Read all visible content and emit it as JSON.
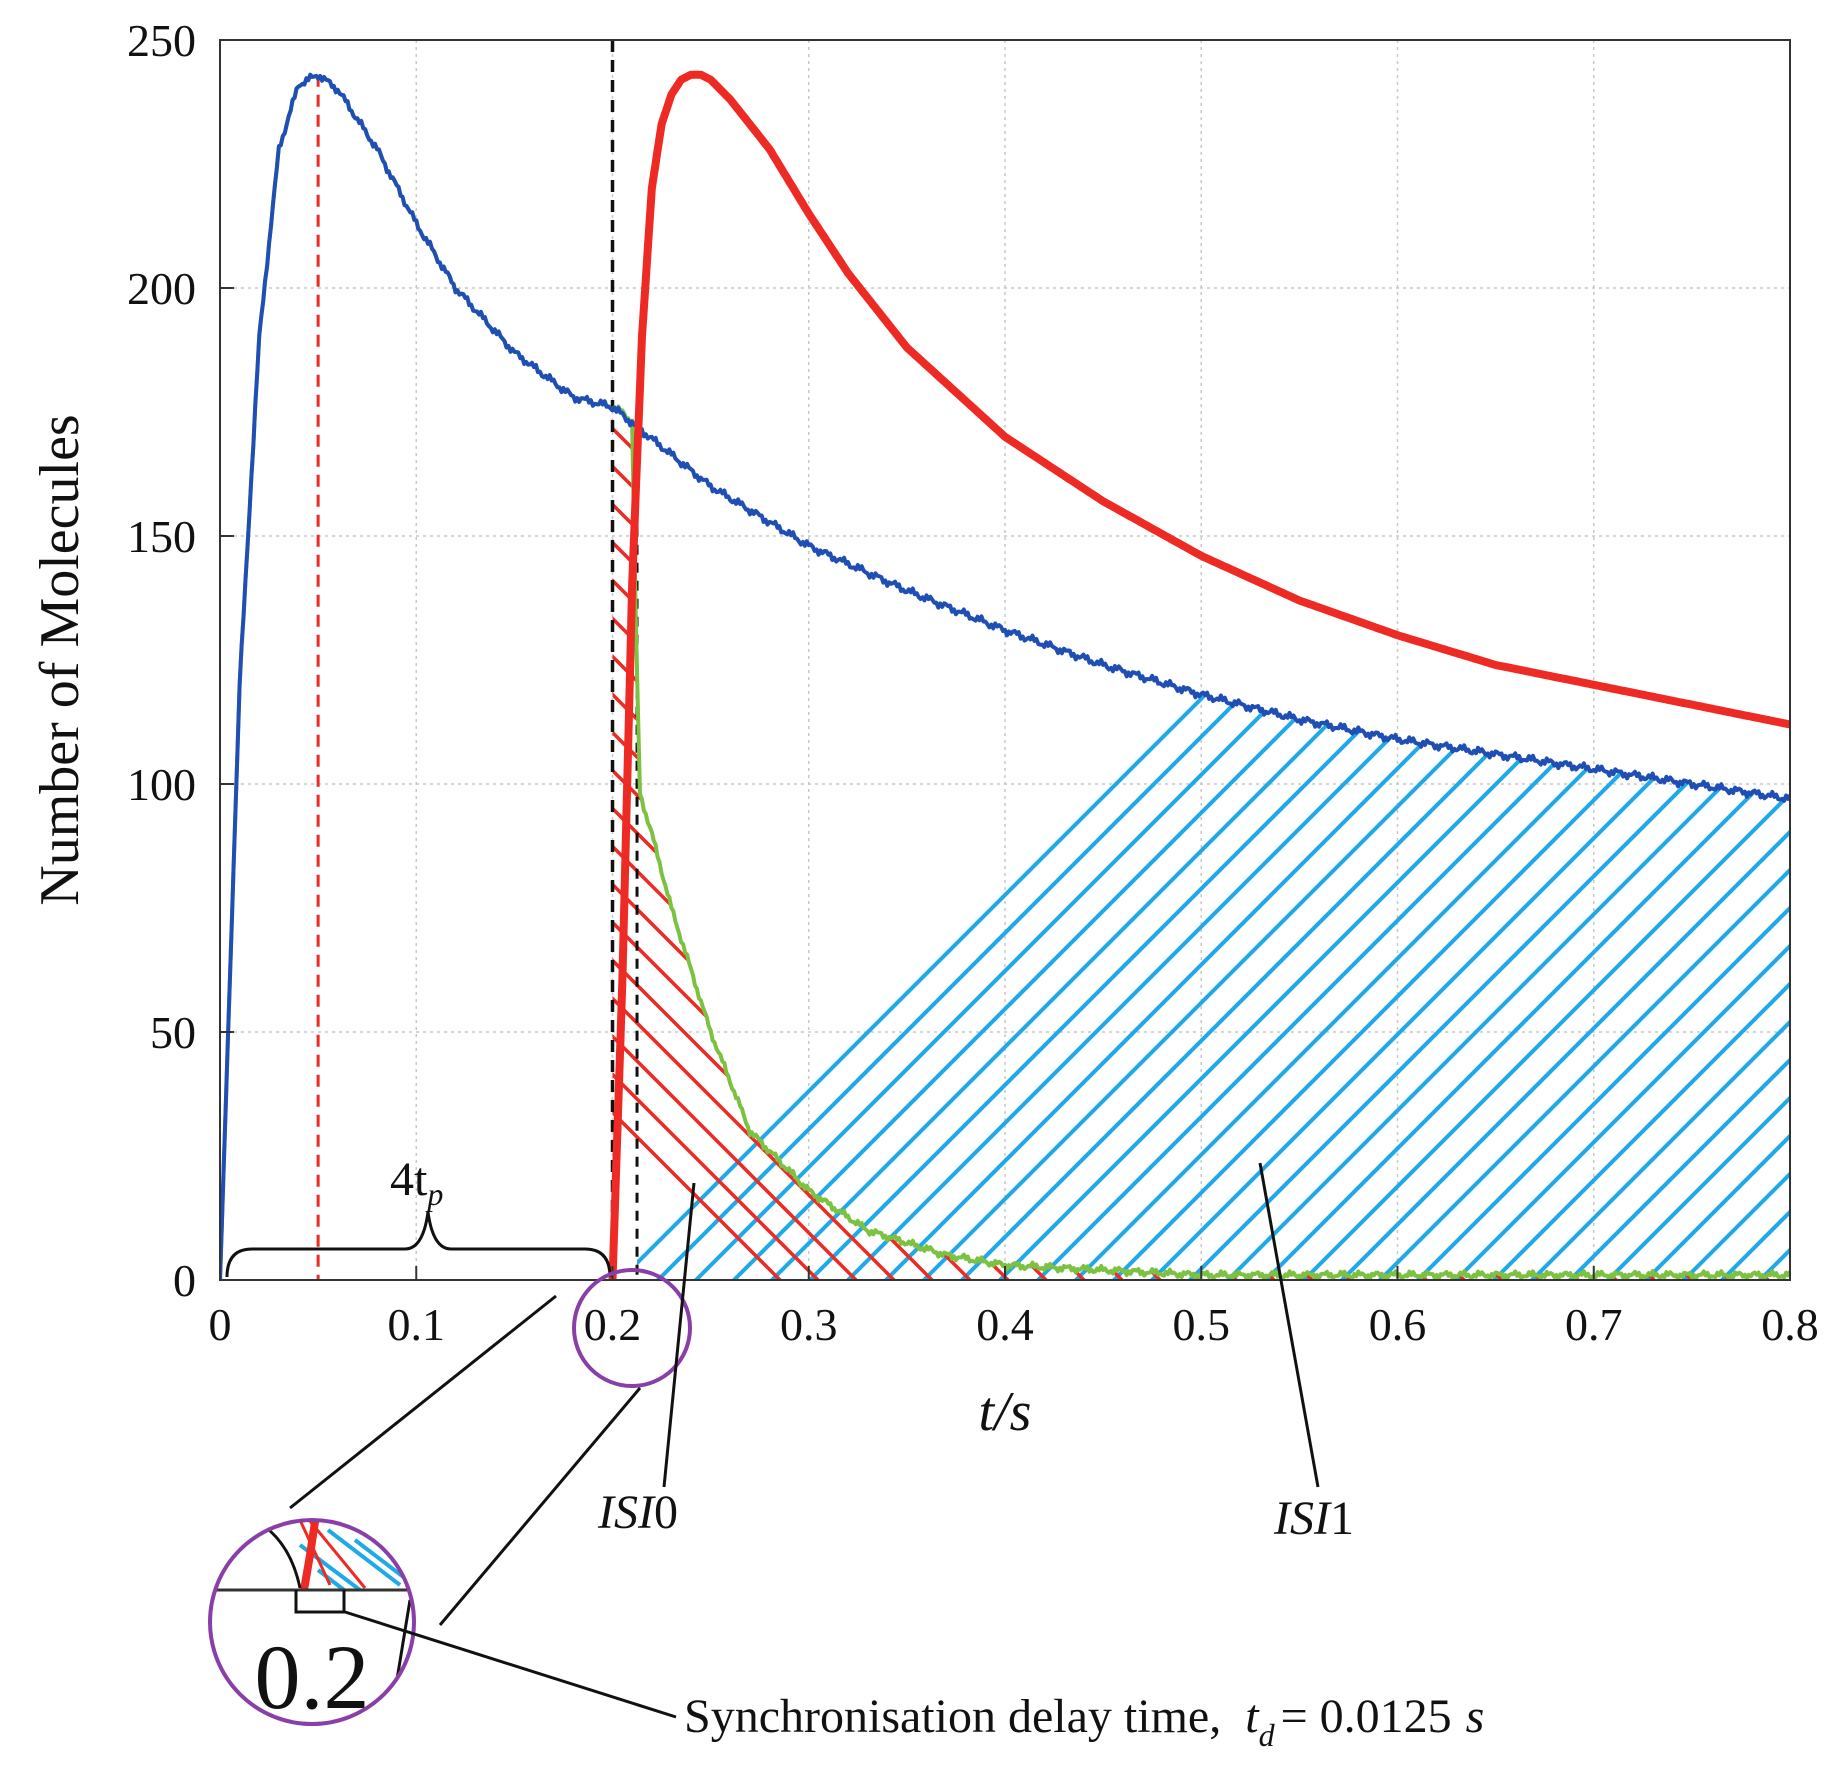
{
  "chart_data": {
    "type": "line",
    "title": "",
    "xlabel": "t/s",
    "ylabel": "Number of Molecules",
    "xlim": [
      0,
      0.8
    ],
    "ylim": [
      0,
      250
    ],
    "grid": true,
    "xticks": [
      "0",
      "0.1",
      "0.2",
      "0.3",
      "0.4",
      "0.5",
      "0.6",
      "0.7",
      "0.8"
    ],
    "yticks": [
      "0",
      "50",
      "100",
      "150",
      "200",
      "250"
    ],
    "colors": {
      "blue": "#1f4fb4",
      "red": "#ee2a24",
      "green": "#7cc142",
      "cyan": "#1fa9e6",
      "purple": "#8a3ea8",
      "black": "#111111"
    },
    "series": [
      {
        "name": "blue",
        "x": [
          0,
          0.01,
          0.02,
          0.03,
          0.04,
          0.05,
          0.06,
          0.08,
          0.1,
          0.12,
          0.15,
          0.18,
          0.2,
          0.25,
          0.3,
          0.35,
          0.4,
          0.45,
          0.5,
          0.55,
          0.6,
          0.65,
          0.7,
          0.75,
          0.8
        ],
        "values": [
          0,
          120,
          190,
          228,
          241,
          243,
          240,
          228,
          213,
          200,
          187,
          178,
          176,
          160,
          148,
          139,
          131,
          124,
          118,
          113,
          109,
          106,
          103,
          100,
          97
        ]
      },
      {
        "name": "green",
        "x": [
          0,
          0.01,
          0.02,
          0.03,
          0.04,
          0.05,
          0.06,
          0.08,
          0.1,
          0.12,
          0.15,
          0.18,
          0.2,
          0.205,
          0.21,
          0.212,
          0.214,
          0.22,
          0.23,
          0.25,
          0.27,
          0.3,
          0.33,
          0.37,
          0.4,
          0.45,
          0.5,
          0.6,
          0.7,
          0.8
        ],
        "values": [
          0,
          120,
          190,
          228,
          241,
          243,
          240,
          228,
          213,
          200,
          187,
          178,
          176,
          175,
          173,
          130,
          98,
          90,
          75,
          50,
          30,
          18,
          10,
          5,
          3,
          2,
          1,
          1,
          1,
          1
        ]
      },
      {
        "name": "red",
        "x": [
          0.2,
          0.205,
          0.21,
          0.215,
          0.22,
          0.225,
          0.23,
          0.235,
          0.24,
          0.245,
          0.25,
          0.26,
          0.28,
          0.3,
          0.32,
          0.35,
          0.4,
          0.45,
          0.5,
          0.55,
          0.6,
          0.65,
          0.7,
          0.75,
          0.8
        ],
        "values": [
          0,
          60,
          140,
          190,
          220,
          233,
          239,
          242,
          243,
          243,
          242,
          238,
          228,
          215,
          203,
          188,
          170,
          157,
          146,
          137,
          130,
          124,
          120,
          116,
          112
        ]
      }
    ],
    "peak_line_x": 0.05,
    "transmission_line_x": 0.2,
    "delay_line_x": 0.2125,
    "annotations": {
      "four_tp": "4t",
      "four_tp_sub": "p",
      "isi0": "ISI",
      "isi0_num": "0",
      "isi1": "ISI",
      "isi1_num": "1",
      "delay_text": "Synchronisation delay time,",
      "delay_symbol": "t",
      "delay_sub": "d",
      "delay_value": "= 0.0125",
      "delay_unit": "s",
      "zoom_label": "0.2"
    }
  }
}
